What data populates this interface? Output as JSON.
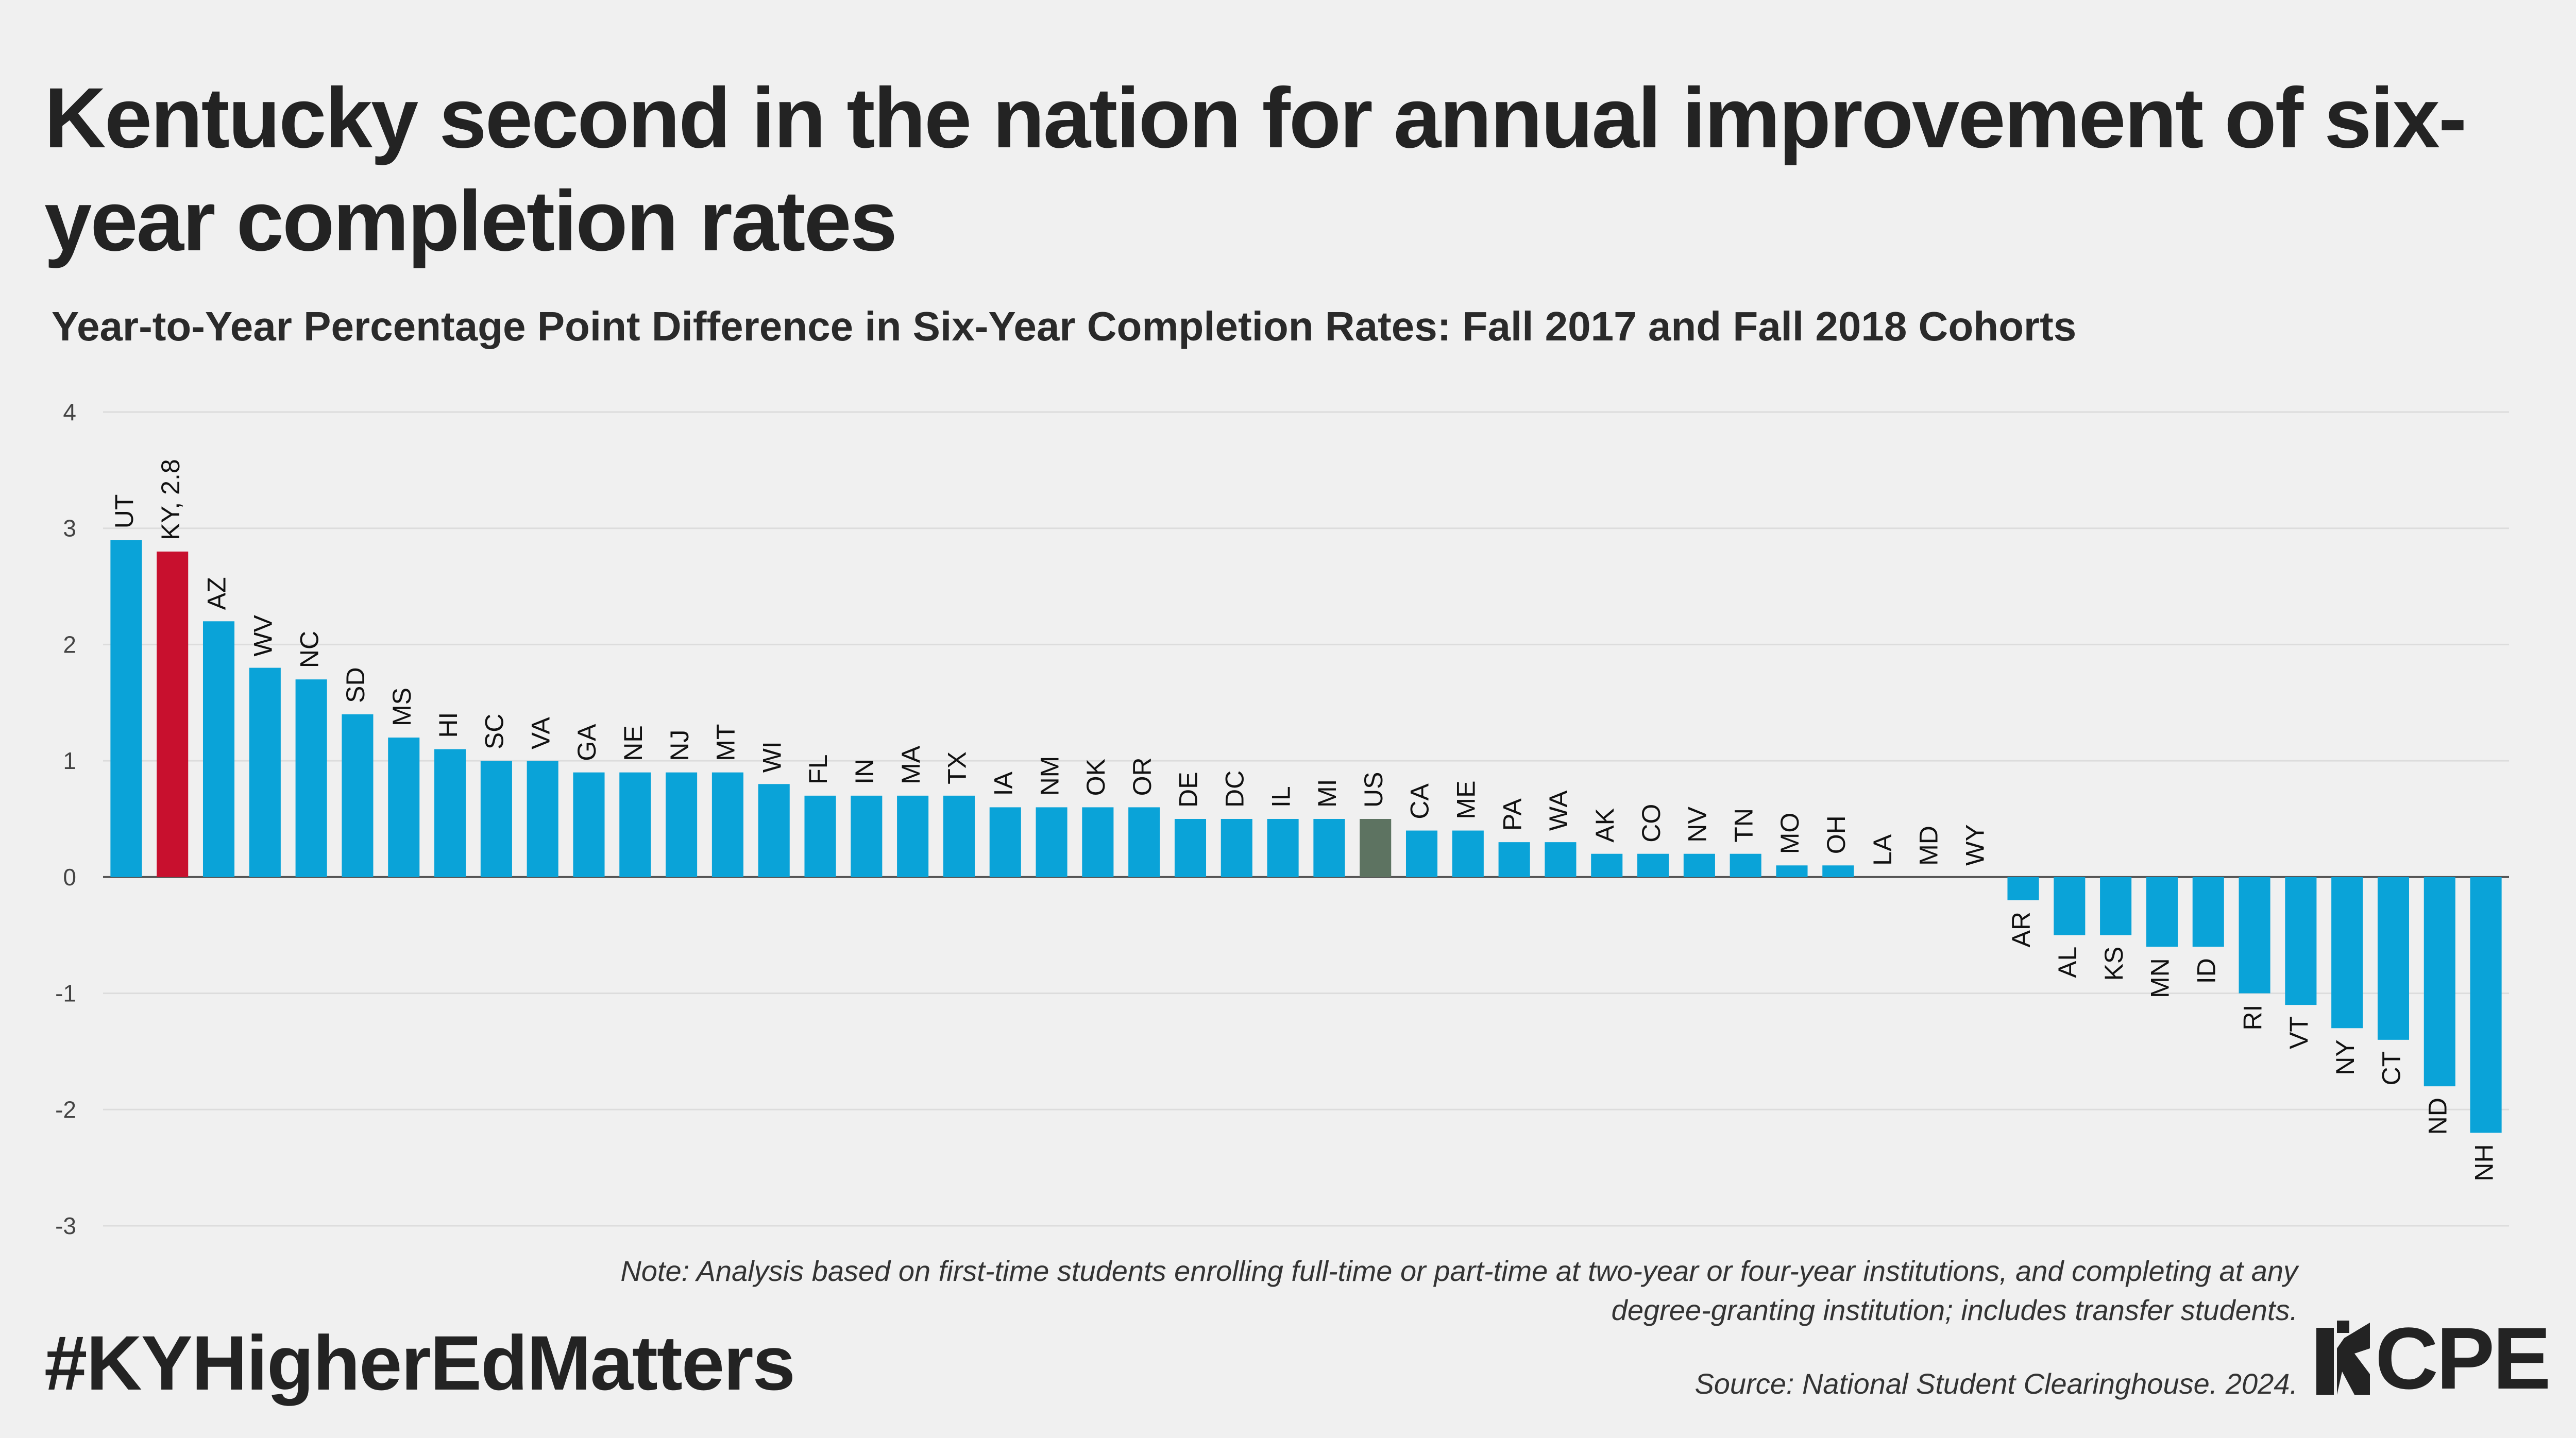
{
  "title": "Kentucky second in the nation for annual improvement of six-year completion rates",
  "subtitle": "Year-to-Year Percentage Point Difference in Six-Year Completion Rates: Fall 2017 and Fall 2018 Cohorts",
  "note": "Note: Analysis based on first-time students enrolling full-time or part-time at two-year or four-year institutions, and completing at any degree-granting institution; includes transfer students.",
  "source": "Source: National Student Clearinghouse. 2024.",
  "hashtag": "#KYHigherEdMatters",
  "logo": {
    "text": "CPE",
    "mark_icon": "cpe-logo-icon"
  },
  "colors": {
    "default": "#0aa3d8",
    "highlight": "#c8102e",
    "national": "#5d7361",
    "grid": "#dcdcdc",
    "zero_line": "#555555"
  },
  "chart_data": {
    "type": "bar",
    "categories": [
      "UT",
      "KY",
      "AZ",
      "WV",
      "NC",
      "SD",
      "MS",
      "HI",
      "SC",
      "VA",
      "GA",
      "NE",
      "NJ",
      "MT",
      "WI",
      "FL",
      "IN",
      "MA",
      "TX",
      "IA",
      "NM",
      "OK",
      "OR",
      "DE",
      "DC",
      "IL",
      "MI",
      "US",
      "CA",
      "ME",
      "PA",
      "WA",
      "AK",
      "CO",
      "NV",
      "TN",
      "MO",
      "OH",
      "LA",
      "MD",
      "WY",
      "AR",
      "AL",
      "KS",
      "MN",
      "ID",
      "RI",
      "VT",
      "NY",
      "CT",
      "ND",
      "NH"
    ],
    "labels": [
      "UT",
      "KY, 2.8",
      "AZ",
      "WV",
      "NC",
      "SD",
      "MS",
      "HI",
      "SC",
      "VA",
      "GA",
      "NE",
      "NJ",
      "MT",
      "WI",
      "FL",
      "IN",
      "MA",
      "TX",
      "IA",
      "NM",
      "OK",
      "OR",
      "DE",
      "DC",
      "IL",
      "MI",
      "US",
      "CA",
      "ME",
      "PA",
      "WA",
      "AK",
      "CO",
      "NV",
      "TN",
      "MO",
      "OH",
      "LA",
      "MD",
      "WY",
      "AR",
      "AL",
      "KS",
      "MN",
      "ID",
      "RI",
      "VT",
      "NY",
      "CT",
      "ND",
      "NH"
    ],
    "values": [
      2.9,
      2.8,
      2.2,
      1.8,
      1.7,
      1.4,
      1.2,
      1.1,
      1.0,
      1.0,
      0.9,
      0.9,
      0.9,
      0.9,
      0.8,
      0.7,
      0.7,
      0.7,
      0.7,
      0.6,
      0.6,
      0.6,
      0.6,
      0.5,
      0.5,
      0.5,
      0.5,
      0.5,
      0.4,
      0.4,
      0.3,
      0.3,
      0.2,
      0.2,
      0.2,
      0.2,
      0.1,
      0.1,
      0,
      0,
      0,
      -0.2,
      -0.5,
      -0.5,
      -0.6,
      -0.6,
      -1.0,
      -1.1,
      -1.3,
      -1.4,
      -1.8,
      -2.2
    ],
    "highlight": "KY",
    "national": "US",
    "ylim": [
      -3,
      4
    ],
    "yticks": [
      "4",
      "3",
      "2",
      "1",
      "0",
      "-1",
      "-2",
      "-3"
    ],
    "grid": true,
    "xlabel": "",
    "ylabel": ""
  }
}
